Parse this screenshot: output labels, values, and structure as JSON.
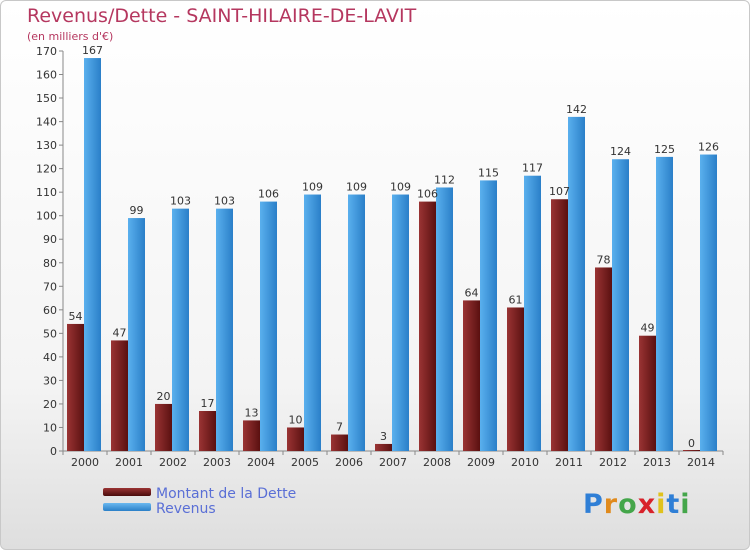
{
  "title": "Revenus/Dette - SAINT-HILAIRE-DE-LAVIT",
  "subtitle": "(en milliers d'€)",
  "logo": {
    "letters": [
      "P",
      "r",
      "o",
      "x",
      "i",
      "t",
      "i"
    ],
    "colors": [
      "#2f7fd6",
      "#e08a1c",
      "#44a64a",
      "#d8222a",
      "#e0c21c",
      "#2f7fd6",
      "#44a64a"
    ]
  },
  "chart_data": {
    "type": "bar",
    "categories": [
      "2000",
      "2001",
      "2002",
      "2003",
      "2004",
      "2005",
      "2006",
      "2007",
      "2008",
      "2009",
      "2010",
      "2011",
      "2012",
      "2013",
      "2014"
    ],
    "series": [
      {
        "name": "Montant de la Dette",
        "color": "#7a1e1e",
        "values": [
          54,
          47,
          20,
          17,
          13,
          10,
          7,
          3,
          106,
          64,
          61,
          107,
          78,
          49,
          0
        ]
      },
      {
        "name": "Revenus",
        "color": "#3a98e0",
        "values": [
          167,
          99,
          103,
          103,
          106,
          109,
          109,
          109,
          112,
          115,
          117,
          142,
          124,
          125,
          126
        ]
      }
    ],
    "ylim": [
      0,
      170
    ],
    "yticks": [
      0,
      10,
      20,
      30,
      40,
      50,
      60,
      70,
      80,
      90,
      100,
      110,
      120,
      130,
      140,
      150,
      160,
      170
    ],
    "grid": false,
    "legend_position": "bottom-left"
  }
}
